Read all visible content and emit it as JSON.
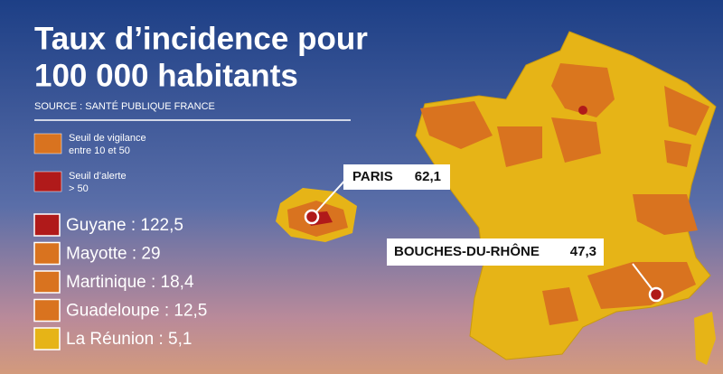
{
  "title": [
    "Taux d’incidence pour",
    "100 000 habitants"
  ],
  "source": "SOURCE : SANTÉ PUBLIQUE FRANCE",
  "legend": [
    {
      "lines": [
        "Seuil de vigilance",
        "entre 10 et 50"
      ],
      "color": "#d9731f"
    },
    {
      "lines": [
        "Seuil d’alerte",
        "> 50"
      ],
      "color": "#b01a1a"
    }
  ],
  "territories": [
    {
      "label": "Guyane : 122,5",
      "color": "#b01a1a"
    },
    {
      "label": "Mayotte : 29",
      "color": "#d9731f"
    },
    {
      "label": "Martinique : 18,4",
      "color": "#d9731f"
    },
    {
      "label": "Guadeloupe : 12,5",
      "color": "#d9731f"
    },
    {
      "label": "La Réunion : 5,1",
      "color": "#e6b417"
    }
  ],
  "callouts": [
    {
      "label": "PARIS",
      "value": "62,1"
    },
    {
      "label": "BOUCHES-DU-RHÔNE",
      "value": "47,3"
    }
  ]
}
